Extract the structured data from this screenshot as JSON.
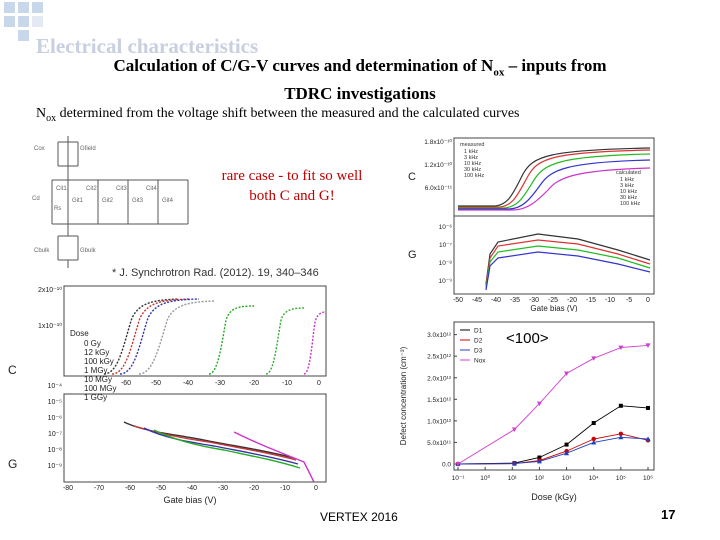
{
  "slide": {
    "background_title": "Electrical characteristics",
    "subtitle_line1_pre": "Calculation of C/G-V curves and determination of N",
    "subtitle_line1_sub": "ox",
    "subtitle_line1_post": " – inputs from",
    "subtitle_line2": "TDRC investigations",
    "desc_pre": "N",
    "desc_sub": "ox",
    "desc_post": " determined from the voltage shift between the measured and the calculated curves",
    "red_note": "rare case - to fit so well both C and G!",
    "citation": "J. Synchrotron Rad. (2012). 19, 340–346",
    "tag_100": "<100>",
    "footer_center": "VERTEX 2016",
    "page_number": "17"
  },
  "circuit": {
    "labels": [
      "Cox",
      "Gfield",
      "Cd",
      "Rs",
      "Cit1",
      "Git1",
      "Cit2",
      "Git2",
      "Cit3",
      "Git3",
      "Cit4",
      "Git4",
      "Cbulk",
      "Gbulk"
    ]
  },
  "top_right_plot": {
    "c_ticks": [
      "1.8x10⁻¹⁰",
      "1.2x10⁻¹⁰",
      "6.0x10⁻¹¹"
    ],
    "g_ticks": [
      "10⁻⁶",
      "10⁻⁷",
      "10⁻⁸",
      "10⁻⁹"
    ],
    "x_ticks": [
      "-50",
      "-45",
      "-40",
      "-35",
      "-30",
      "-25",
      "-20",
      "-15",
      "-10",
      "-5",
      "0"
    ],
    "xlabel": "Gate bias (V)",
    "ylabel_c": "C",
    "ylabel_g": "G",
    "legend_measured_title": "measured",
    "legend_measured": [
      "1 kHz",
      "3 kHz",
      "10 kHz",
      "30 kHz",
      "100 kHz"
    ],
    "legend_calculated_title": "calculated",
    "legend_calculated": [
      "1 kHz",
      "3 kHz",
      "10 kHz",
      "30 kHz",
      "100 kHz"
    ]
  },
  "left_plot": {
    "c_ticks": [
      "2x10⁻¹⁰",
      "1x10⁻¹⁰"
    ],
    "g_ticks": [
      "10⁻⁴",
      "10⁻⁵",
      "10⁻⁶",
      "10⁻⁷",
      "10⁻⁸",
      "10⁻⁹"
    ],
    "x_ticks_upper": [
      "-60",
      "-50",
      "-40",
      "-30",
      "-20",
      "-10",
      "0"
    ],
    "x_ticks_lower": [
      "-80",
      "-70",
      "-60",
      "-50",
      "-40",
      "-30",
      "-20",
      "-10",
      "0"
    ],
    "xlabel": "Gate bias (V)",
    "ylabel_c": "C",
    "ylabel_g": "G",
    "legend_title": "Dose",
    "legend": [
      "0 Gy",
      "12 kGy",
      "100 kGy",
      "1 MGy",
      "10 MGy",
      "100 MGy",
      "1 GGy"
    ]
  },
  "chart_data": {
    "type": "line",
    "title": "",
    "xlabel": "Dose (kGy)",
    "ylabel": "Defect concentration (cm⁻³)",
    "x_scale": "log",
    "categories": [
      "10⁻¹",
      "10⁰",
      "10¹",
      "10²",
      "10³",
      "10⁴",
      "10⁵",
      "10⁶"
    ],
    "yticks": [
      "0.0",
      "5.0x10¹¹",
      "1.0x10¹²",
      "1.5x10¹²",
      "2.0x10¹²",
      "2.5x10¹²",
      "3.0x10¹²"
    ],
    "ylim": [
      0,
      3200000000000.0
    ],
    "xlim": [
      0.1,
      1000000
    ],
    "series": [
      {
        "name": "D1",
        "color": "#000000",
        "marker": "square",
        "x": [
          0.1,
          12,
          100,
          1000,
          10000,
          100000,
          1000000
        ],
        "y": [
          0,
          20000000000.0,
          150000000000.0,
          450000000000.0,
          950000000000.0,
          1350000000000.0,
          1300000000000.0
        ]
      },
      {
        "name": "D2",
        "color": "#d00000",
        "marker": "circle",
        "x": [
          0.1,
          12,
          100,
          1000,
          10000,
          100000,
          1000000
        ],
        "y": [
          0,
          10000000000.0,
          80000000000.0,
          300000000000.0,
          580000000000.0,
          700000000000.0,
          550000000000.0
        ]
      },
      {
        "name": "D3",
        "color": "#2040c0",
        "marker": "triangle",
        "x": [
          0.1,
          12,
          100,
          1000,
          10000,
          100000,
          1000000
        ],
        "y": [
          0,
          10000000000.0,
          60000000000.0,
          250000000000.0,
          500000000000.0,
          620000000000.0,
          580000000000.0
        ]
      },
      {
        "name": "Nox",
        "color": "#d040d0",
        "marker": "triangle-down",
        "x": [
          0.1,
          12,
          100,
          1000,
          10000,
          100000,
          1000000
        ],
        "y": [
          0,
          800000000000.0,
          1400000000000.0,
          2100000000000.0,
          2450000000000.0,
          2700000000000.0,
          2750000000000.0
        ]
      }
    ]
  }
}
